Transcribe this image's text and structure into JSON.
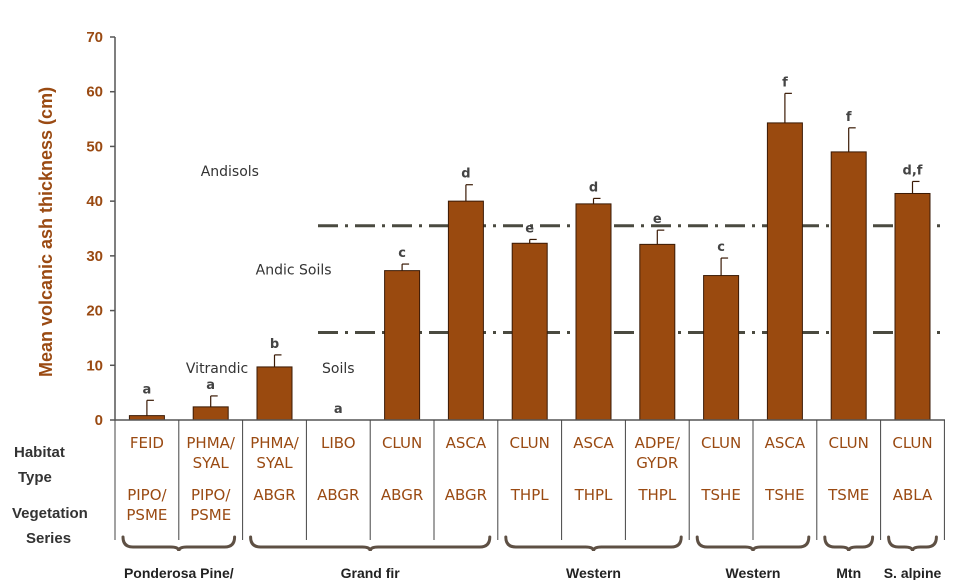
{
  "chart_data": {
    "type": "bar",
    "ylabel": "Mean volcanic ash thickness (cm)",
    "ylim": [
      0,
      70
    ],
    "yticks": [
      0,
      10,
      20,
      30,
      40,
      50,
      60,
      70
    ],
    "row_labels": {
      "habitat": [
        "Habitat",
        "Type"
      ],
      "vegetation": [
        "Vegetation",
        "Series"
      ]
    },
    "categories": [
      {
        "habitat": [
          "FEID"
        ],
        "series": [
          "PIPO/",
          "PSME"
        ]
      },
      {
        "habitat": [
          "PHMA/",
          "SYAL"
        ],
        "series": [
          "PIPO/",
          "PSME"
        ]
      },
      {
        "habitat": [
          "PHMA/",
          "SYAL"
        ],
        "series": [
          "ABGR"
        ]
      },
      {
        "habitat": [
          "LIBO"
        ],
        "series": [
          "ABGR"
        ]
      },
      {
        "habitat": [
          "CLUN"
        ],
        "series": [
          "ABGR"
        ]
      },
      {
        "habitat": [
          "ASCA"
        ],
        "series": [
          "ABGR"
        ]
      },
      {
        "habitat": [
          "CLUN"
        ],
        "series": [
          "THPL"
        ]
      },
      {
        "habitat": [
          "ASCA"
        ],
        "series": [
          "THPL"
        ]
      },
      {
        "habitat": [
          "ADPE/",
          "GYDR"
        ],
        "series": [
          "THPL"
        ]
      },
      {
        "habitat": [
          "CLUN"
        ],
        "series": [
          "TSHE"
        ]
      },
      {
        "habitat": [
          "ASCA"
        ],
        "series": [
          "TSHE"
        ]
      },
      {
        "habitat": [
          "CLUN"
        ],
        "series": [
          "TSME"
        ]
      },
      {
        "habitat": [
          "CLUN"
        ],
        "series": [
          "ABLA"
        ]
      }
    ],
    "values": [
      0.8,
      2.4,
      9.7,
      0,
      27.3,
      40.0,
      32.3,
      39.5,
      32.1,
      26.4,
      54.3,
      49.0,
      41.4
    ],
    "errors": [
      2.8,
      2.0,
      2.2,
      0,
      1.2,
      3.0,
      0.7,
      1.0,
      2.6,
      3.2,
      5.4,
      4.4,
      2.2
    ],
    "significance": [
      "a",
      "a",
      "b",
      "a",
      "c",
      "d",
      "e",
      "d",
      "e",
      "c",
      "f",
      "f",
      "d,f"
    ],
    "thresholds": [
      {
        "value": 35.5
      },
      {
        "value": 16
      }
    ],
    "zone_labels": [
      {
        "text": "Andisols",
        "y": 45.5,
        "cat": 1.3
      },
      {
        "text": "Andic Soils",
        "y": 27.5,
        "cat": 2.3
      },
      {
        "text": "Vitrandic",
        "y": 9.5,
        "cat": 1.1
      },
      {
        "text": "Soils",
        "y": 9.5,
        "cat": 3.0
      }
    ],
    "groups": [
      {
        "label": "Ponderosa Pine/",
        "start": 0,
        "end": 1
      },
      {
        "label": "Grand fir",
        "start": 2,
        "end": 5
      },
      {
        "label": "Western",
        "start": 6,
        "end": 8
      },
      {
        "label": "Western",
        "start": 9,
        "end": 10
      },
      {
        "label": "Mtn",
        "start": 11,
        "end": 11
      },
      {
        "label": "S. alpine",
        "start": 12,
        "end": 12
      }
    ],
    "colors": {
      "bar": "#9a4a0f",
      "bar_edge": "#3a1a05",
      "axis_text": "#9a4a12",
      "threshold": "#4a4a40",
      "bracket": "#5e5044"
    }
  }
}
